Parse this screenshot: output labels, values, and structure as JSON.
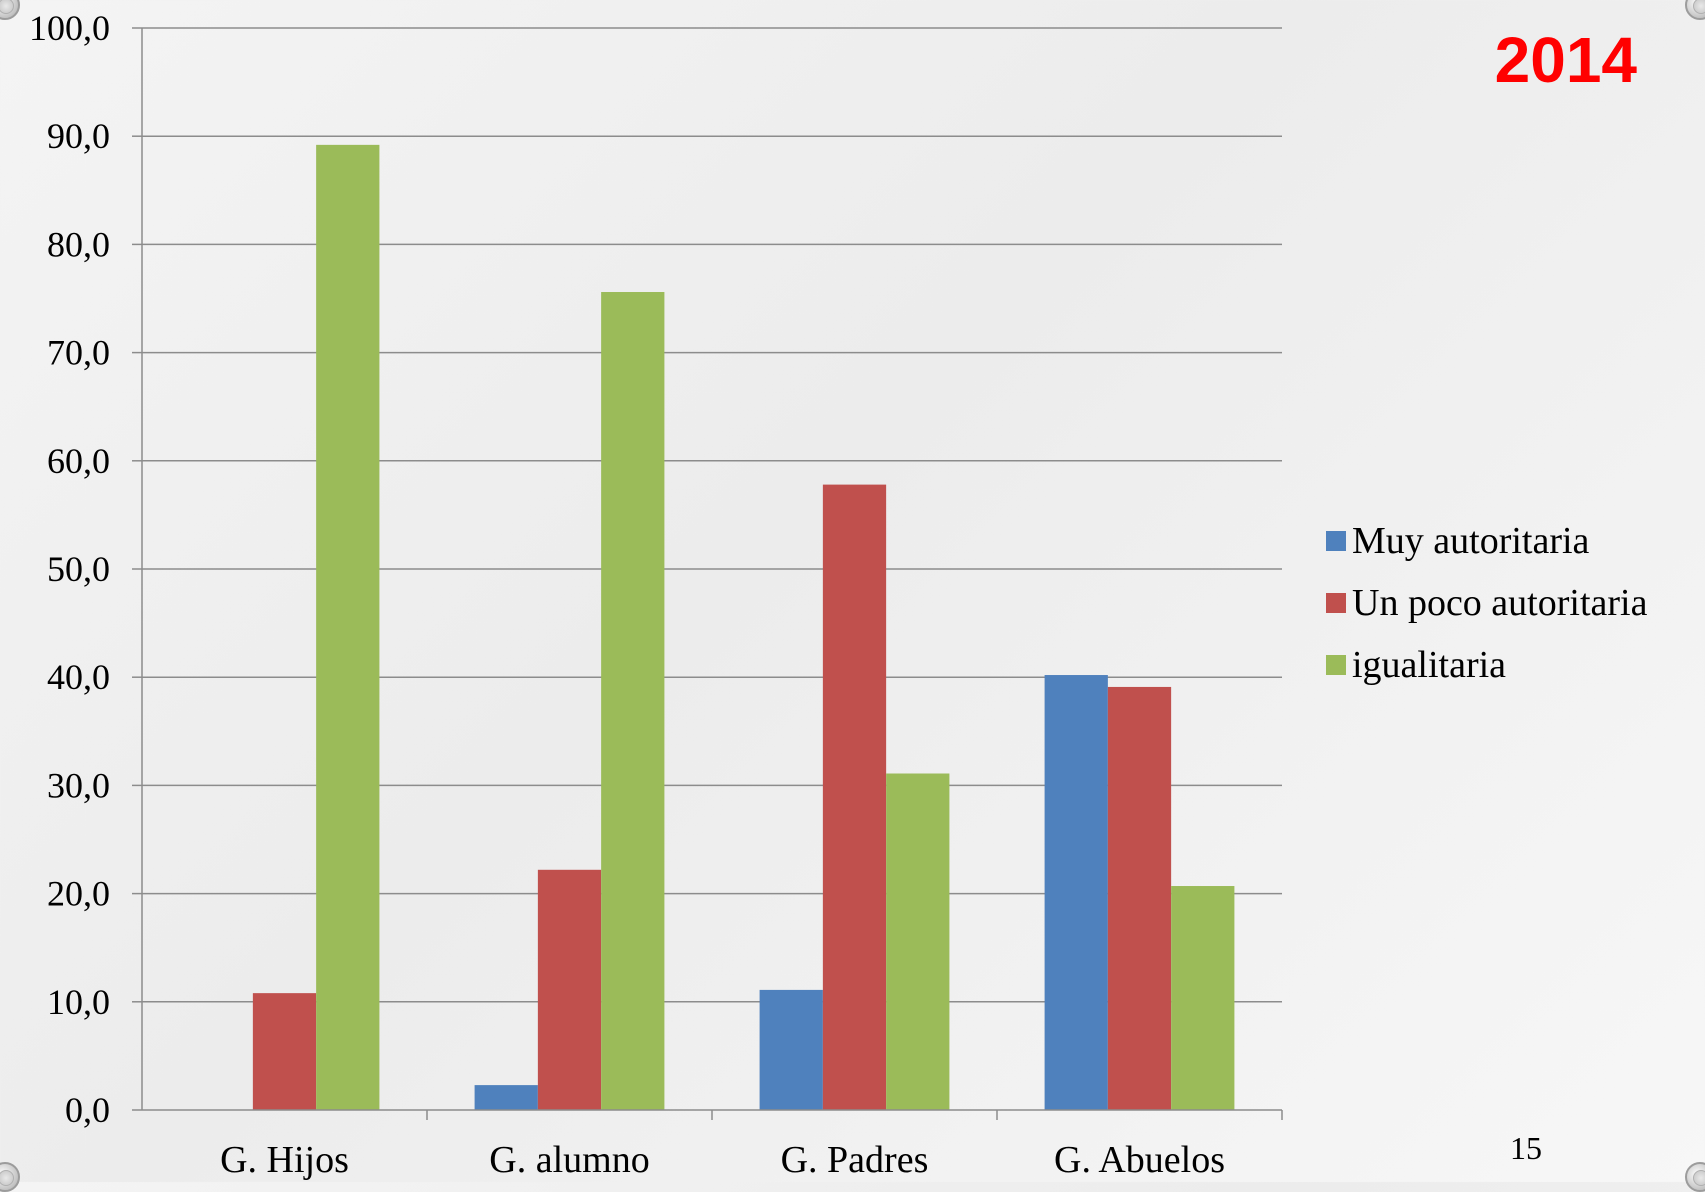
{
  "chart_data": {
    "type": "bar",
    "title": "2014",
    "categories": [
      "G. Hijos",
      "G. alumno",
      "G. Padres",
      "G. Abuelos"
    ],
    "series": [
      {
        "name": "Muy autoritaria",
        "color": "#4f81bd",
        "values": [
          0,
          2.3,
          11.1,
          40.2
        ]
      },
      {
        "name": "Un poco autoritaria",
        "color": "#c0504d",
        "values": [
          10.8,
          22.2,
          57.8,
          39.1
        ]
      },
      {
        "name": "igualitaria",
        "color": "#9bbb59",
        "values": [
          89.2,
          75.6,
          31.1,
          20.7
        ]
      }
    ],
    "ylim": [
      0,
      100
    ],
    "yticks": [
      "0,0",
      "10,0",
      "20,0",
      "30,0",
      "40,0",
      "50,0",
      "60,0",
      "70,0",
      "80,0",
      "90,0",
      "100,0"
    ],
    "grid": true,
    "legend_position": "right"
  },
  "page_number": "15"
}
